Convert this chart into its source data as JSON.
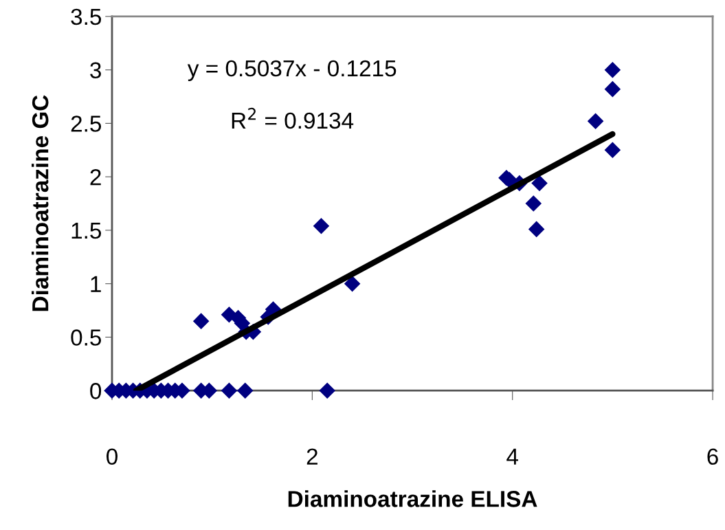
{
  "chart_data": {
    "type": "scatter",
    "xlabel": "Diaminoatrazine ELISA",
    "ylabel": "Diaminoatrazine GC",
    "xlim": [
      0,
      6
    ],
    "xticks": [
      0,
      2,
      4,
      6
    ],
    "ylim": [
      0,
      3.5
    ],
    "yticks": [
      0,
      0.5,
      1,
      1.5,
      2,
      2.5,
      3,
      3.5
    ],
    "grid": false,
    "legend": false,
    "marker": "diamond",
    "annotations": [
      "y = 0.5037x - 0.1215",
      "R$^{2}$ = 0.9134"
    ],
    "series": [
      {
        "color": "#000080",
        "x": [
          0.0,
          0.07,
          0.14,
          0.21,
          0.28,
          0.35,
          0.42,
          0.49,
          0.56,
          0.63,
          0.7,
          0.89,
          0.97,
          1.17,
          1.33,
          2.15,
          0.89,
          1.17,
          1.26,
          1.3,
          1.34,
          1.41,
          1.56,
          1.61,
          2.09,
          2.4,
          3.94,
          3.97,
          4.07,
          4.27,
          4.21,
          4.24,
          4.83,
          5.0,
          5.0,
          5.0
        ],
        "values": [
          0,
          0,
          0,
          0,
          0,
          0,
          0,
          0,
          0,
          0,
          0,
          0,
          0,
          0,
          0,
          0,
          0.65,
          0.71,
          0.68,
          0.63,
          0.55,
          0.55,
          0.69,
          0.76,
          1.54,
          1.0,
          1.99,
          1.97,
          1.94,
          1.94,
          1.75,
          1.51,
          2.52,
          3.0,
          2.82,
          2.25
        ]
      },
      {
        "type": "line",
        "color": "#000000",
        "x": [
          0.24,
          5.0
        ],
        "values": [
          0.0,
          2.4
        ],
        "marker": "none",
        "line_style": "solid"
      }
    ]
  }
}
